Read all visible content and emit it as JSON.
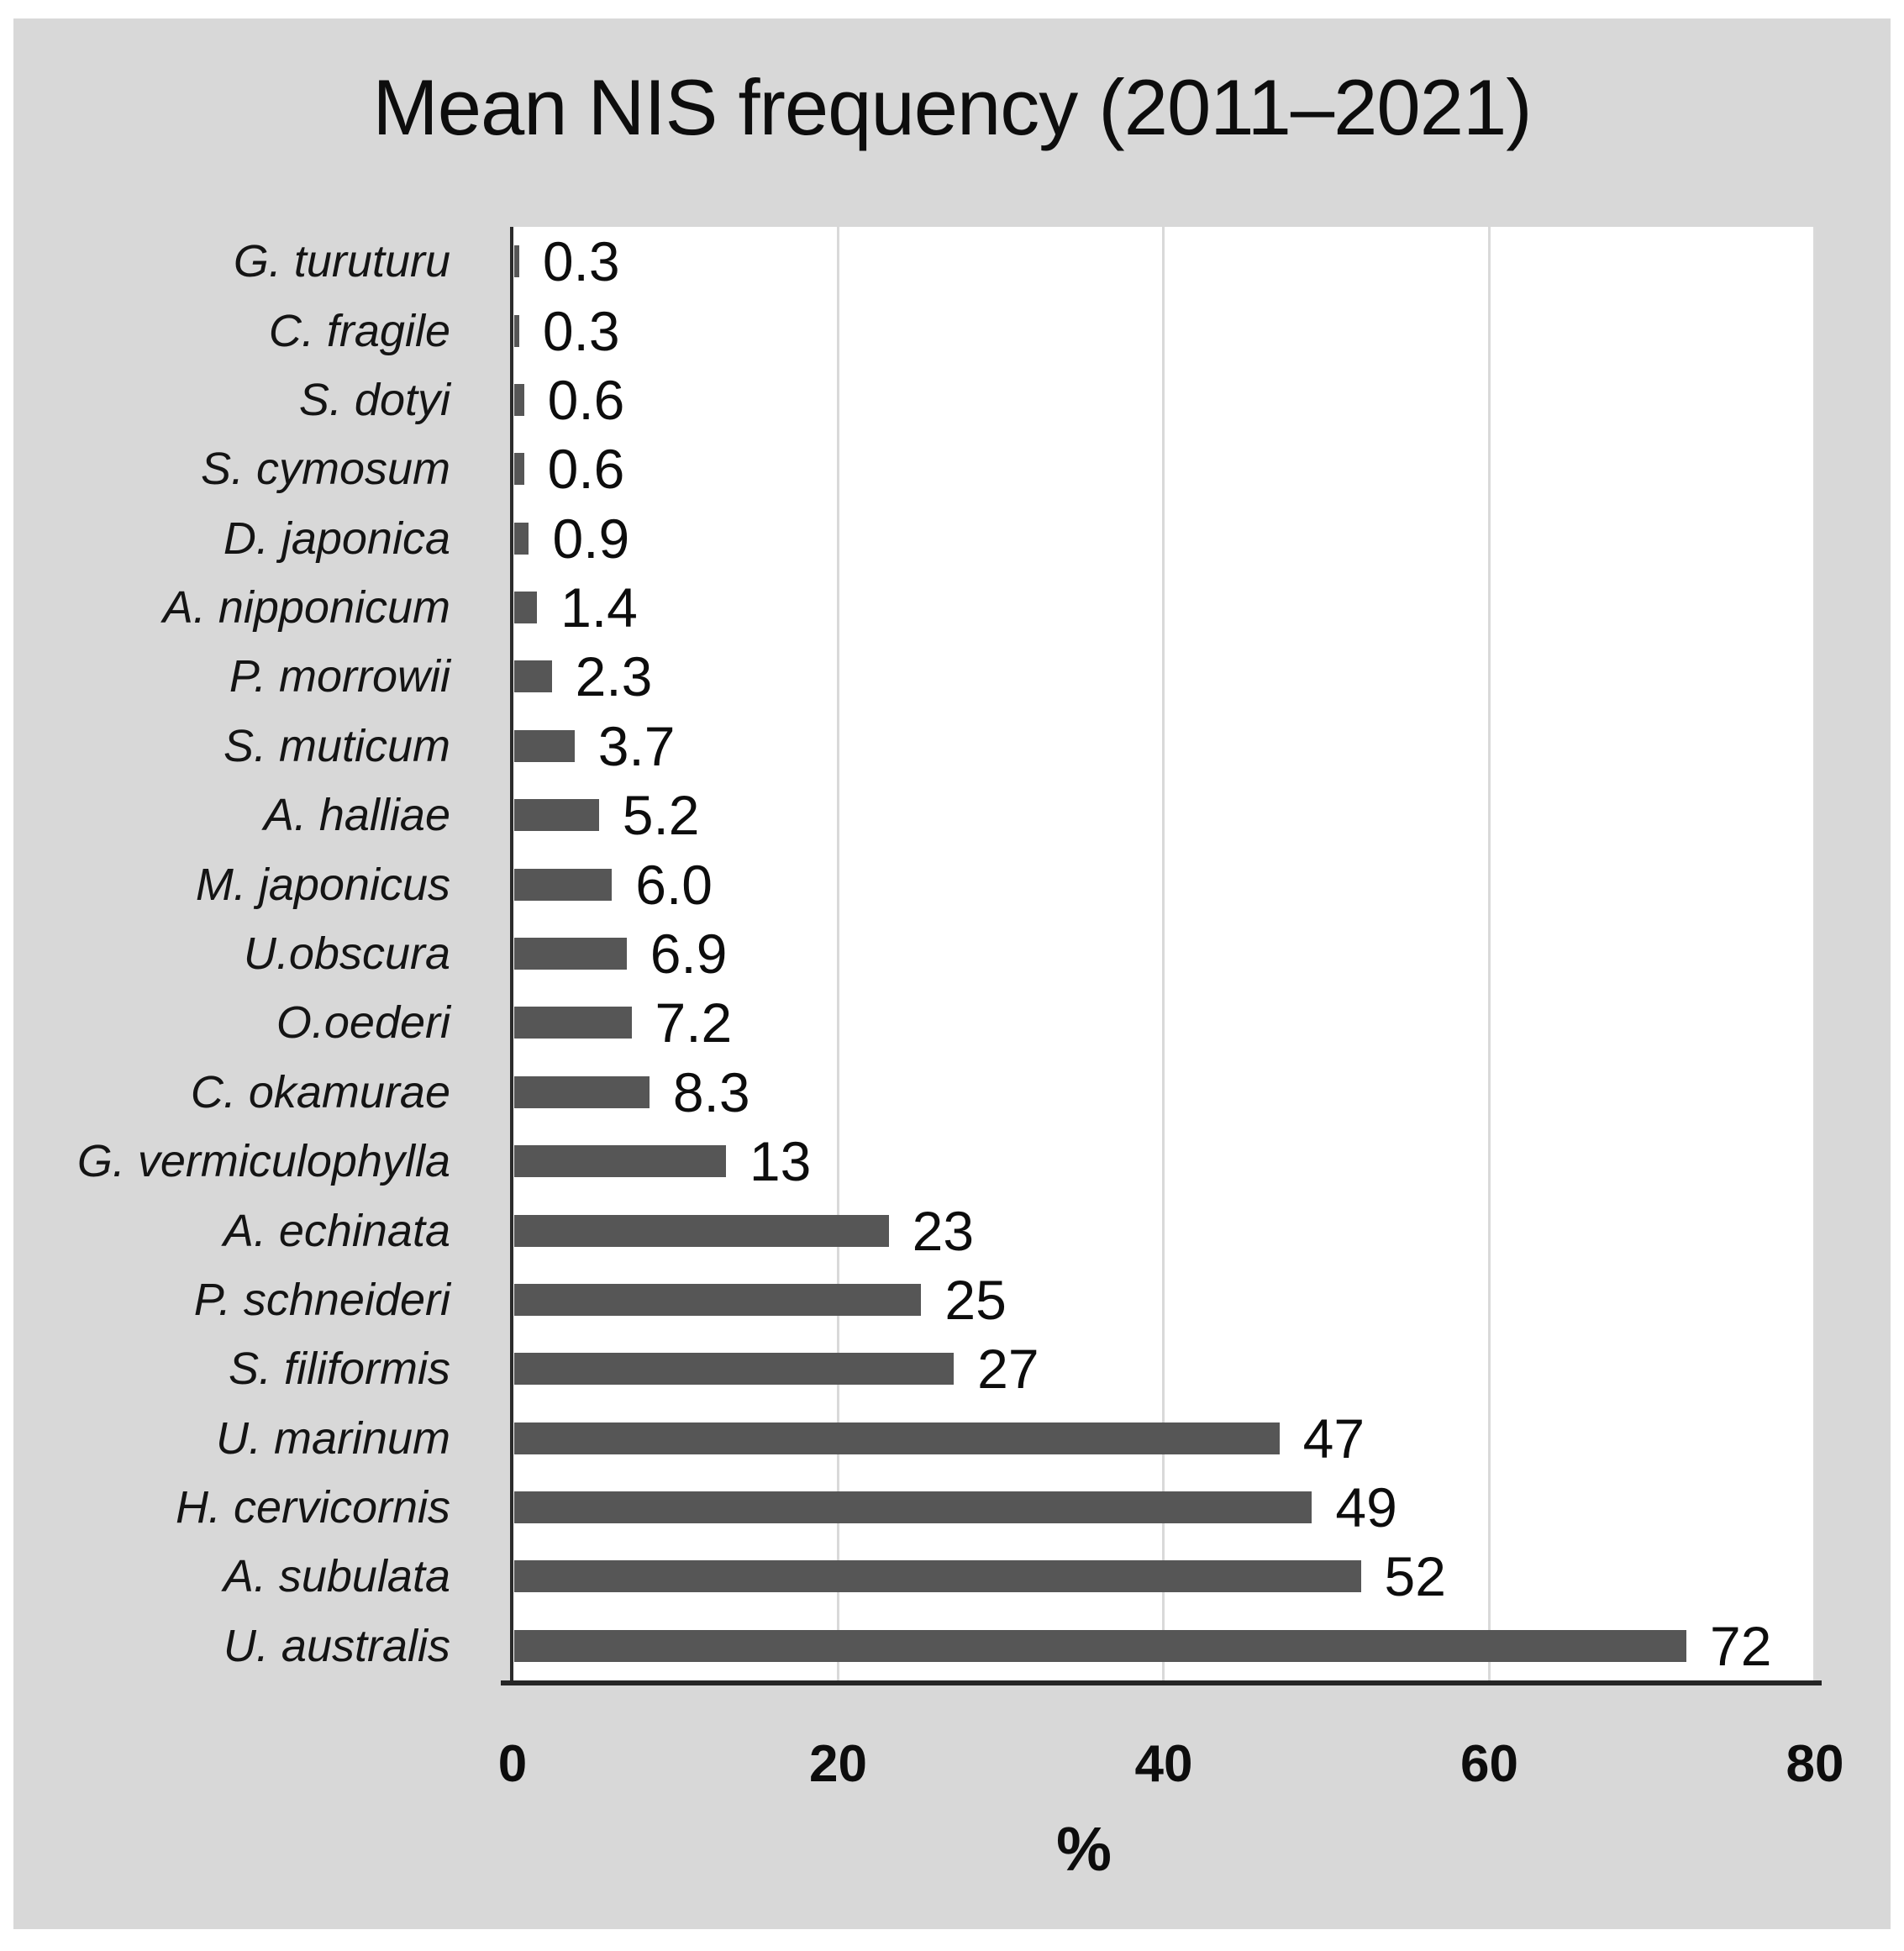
{
  "title": "Mean NIS frequency (2011–2021)",
  "chart_data": {
    "type": "bar",
    "orientation": "horizontal",
    "title": "Mean NIS frequency (2011–2021)",
    "xlabel": "%",
    "ylabel": "",
    "xlim": [
      0,
      80
    ],
    "xticks": [
      0,
      20,
      40,
      60,
      80
    ],
    "xtick_labels": [
      "0",
      "20",
      "40",
      "60",
      "80"
    ],
    "grid": "vertical",
    "legend": "none",
    "categories_top_to_bottom": [
      "G. turuturu",
      "C. fragile",
      "S. dotyi",
      "S. cymosum",
      "D. japonica",
      "A. nipponicum",
      "P. morrowii",
      "S. muticum",
      "A. halliae",
      "M. japonicus",
      "U.obscura",
      "O.oederi",
      "C. okamurae",
      "G. vermiculophylla",
      "A. echinata",
      "P. schneideri",
      "S. filiformis",
      "U. marinum",
      "H. cervicornis",
      "A. subulata",
      "U. australis"
    ],
    "values": [
      0.3,
      0.3,
      0.6,
      0.6,
      0.9,
      1.4,
      2.3,
      3.7,
      5.2,
      6.0,
      6.9,
      7.2,
      8.3,
      13,
      23,
      25,
      27,
      47,
      49,
      52,
      72
    ],
    "value_labels": [
      "0.3",
      "0.3",
      "0.6",
      "0.6",
      "0.9",
      "1.4",
      "2.3",
      "3.7",
      "5.2",
      "6.0",
      "6.9",
      "7.2",
      "8.3",
      "13",
      "23",
      "25",
      "27",
      "47",
      "49",
      "52",
      "72"
    ],
    "colors": {
      "bar": "#565656",
      "panel_background": "#d8d8d8",
      "plot_background": "#ffffff",
      "gridline": "#d9d9d9",
      "axis_line": "#262626",
      "text": "#0d0d0d"
    }
  }
}
